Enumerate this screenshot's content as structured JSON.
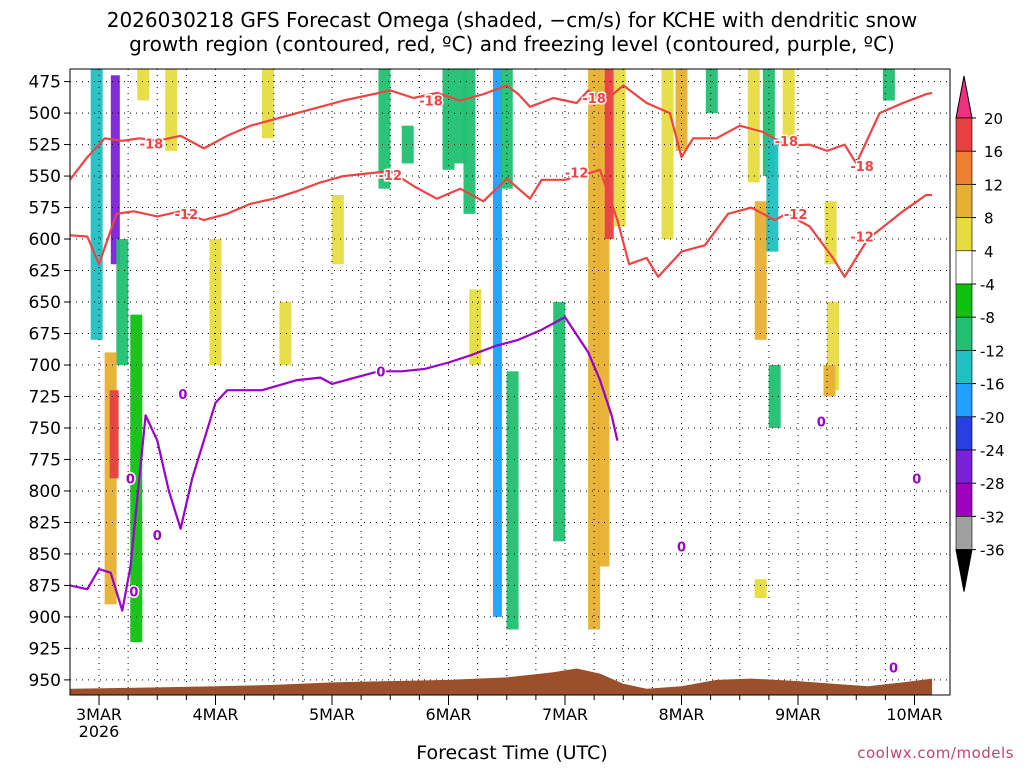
{
  "title": {
    "line1": "2026030218 GFS Forecast Omega (shaded, −cm/s) for KCHE with dendritic snow",
    "line2": "growth region (contoured, red, ºC) and freezing level (contoured, purple, ºC)"
  },
  "xlabel": "Forecast Time (UTC)",
  "credit": "coolwx.com/models",
  "colors": {
    "terrain": "#9c4f2b",
    "isotherm_red": "#ee4444",
    "freezing_purple": "#9900cc",
    "grid": "#000000"
  },
  "chart_data": {
    "type": "heatmap",
    "x_axis": {
      "ticks": [
        "3MAR",
        "4MAR",
        "5MAR",
        "6MAR",
        "7MAR",
        "8MAR",
        "9MAR",
        "10MAR"
      ],
      "sublabel": "2026",
      "range_days": [
        -0.25,
        7.15
      ]
    },
    "y_axis": {
      "label": "",
      "ticks": [
        475,
        500,
        525,
        550,
        575,
        600,
        625,
        650,
        675,
        700,
        725,
        750,
        775,
        800,
        825,
        850,
        875,
        900,
        925,
        950
      ],
      "range_mb": [
        465,
        962
      ],
      "inverted": true
    },
    "colorbar": {
      "levels": [
        "20",
        "16",
        "12",
        "8",
        "4",
        "-4",
        "-8",
        "-12",
        "-16",
        "-20",
        "-24",
        "-28",
        "-32",
        "-36"
      ],
      "colors": [
        "#f0307f",
        "#e84040",
        "#ef8030",
        "#e8b030",
        "#e6dc40",
        "#ffffff",
        "#10c010",
        "#20c070",
        "#20c0c0",
        "#1fa0ff",
        "#2840e0",
        "#7a20d8",
        "#a000c0",
        "#a0a0a0",
        "#000000"
      ]
    },
    "omega_regions": [
      {
        "day": -0.02,
        "p_top": 465,
        "p_bot": 680,
        "value": -14
      },
      {
        "day": 0.14,
        "p_top": 470,
        "p_bot": 620,
        "value": -26
      },
      {
        "day": 0.2,
        "p_top": 600,
        "p_bot": 700,
        "value": -10
      },
      {
        "day": 0.1,
        "p_top": 690,
        "p_bot": 890,
        "value": 12
      },
      {
        "day": 0.13,
        "p_top": 720,
        "p_bot": 790,
        "value": 18
      },
      {
        "day": 0.32,
        "p_top": 660,
        "p_bot": 920,
        "value": -6
      },
      {
        "day": 0.38,
        "p_top": 465,
        "p_bot": 490,
        "value": 5
      },
      {
        "day": 0.62,
        "p_top": 465,
        "p_bot": 530,
        "value": 5
      },
      {
        "day": 1.45,
        "p_top": 465,
        "p_bot": 520,
        "value": 5
      },
      {
        "day": 1.0,
        "p_top": 600,
        "p_bot": 700,
        "value": 5
      },
      {
        "day": 1.6,
        "p_top": 650,
        "p_bot": 700,
        "value": 5
      },
      {
        "day": 2.65,
        "p_top": 510,
        "p_bot": 540,
        "value": -8
      },
      {
        "day": 2.05,
        "p_top": 565,
        "p_bot": 620,
        "value": 5
      },
      {
        "day": 2.45,
        "p_top": 465,
        "p_bot": 560,
        "value": -8
      },
      {
        "day": 3.0,
        "p_top": 465,
        "p_bot": 545,
        "value": -8
      },
      {
        "day": 3.1,
        "p_top": 465,
        "p_bot": 540,
        "value": -8
      },
      {
        "day": 3.18,
        "p_top": 465,
        "p_bot": 580,
        "value": -8
      },
      {
        "day": 3.23,
        "p_top": 640,
        "p_bot": 700,
        "value": 5
      },
      {
        "day": 3.42,
        "p_top": 465,
        "p_bot": 900,
        "value": -18
      },
      {
        "day": 3.5,
        "p_top": 465,
        "p_bot": 560,
        "value": -8
      },
      {
        "day": 3.55,
        "p_top": 705,
        "p_bot": 910,
        "value": -8
      },
      {
        "day": 3.95,
        "p_top": 650,
        "p_bot": 840,
        "value": -8
      },
      {
        "day": 4.25,
        "p_top": 465,
        "p_bot": 910,
        "value": 10
      },
      {
        "day": 4.33,
        "p_top": 465,
        "p_bot": 860,
        "value": 12
      },
      {
        "day": 4.38,
        "p_top": 465,
        "p_bot": 600,
        "value": 20
      },
      {
        "day": 4.47,
        "p_top": 465,
        "p_bot": 590,
        "value": 6
      },
      {
        "day": 4.88,
        "p_top": 465,
        "p_bot": 600,
        "value": 6
      },
      {
        "day": 5.0,
        "p_top": 465,
        "p_bot": 530,
        "value": 10
      },
      {
        "day": 5.26,
        "p_top": 465,
        "p_bot": 500,
        "value": -8
      },
      {
        "day": 5.62,
        "p_top": 465,
        "p_bot": 555,
        "value": 6
      },
      {
        "day": 5.68,
        "p_top": 570,
        "p_bot": 680,
        "value": 12
      },
      {
        "day": 5.75,
        "p_top": 465,
        "p_bot": 550,
        "value": -8
      },
      {
        "day": 5.78,
        "p_top": 520,
        "p_bot": 610,
        "value": -13
      },
      {
        "day": 5.8,
        "p_top": 700,
        "p_bot": 750,
        "value": -8
      },
      {
        "day": 5.92,
        "p_top": 465,
        "p_bot": 520,
        "value": 6
      },
      {
        "day": 6.28,
        "p_top": 570,
        "p_bot": 620,
        "value": 6
      },
      {
        "day": 6.3,
        "p_top": 650,
        "p_bot": 720,
        "value": 6
      },
      {
        "day": 6.27,
        "p_top": 700,
        "p_bot": 725,
        "value": 10
      },
      {
        "day": 6.78,
        "p_top": 465,
        "p_bot": 490,
        "value": -8
      },
      {
        "day": 5.68,
        "p_top": 870,
        "p_bot": 885,
        "value": 6
      }
    ],
    "series": [
      {
        "name": "-18",
        "color": "red",
        "x": [
          -0.25,
          -0.1,
          0.05,
          0.2,
          0.35,
          0.5,
          0.7,
          0.9,
          1.1,
          1.3,
          1.5,
          1.7,
          1.9,
          2.1,
          2.3,
          2.5,
          2.7,
          2.9,
          3.1,
          3.3,
          3.5,
          3.6,
          3.7,
          3.9,
          4.1,
          4.2,
          4.35,
          4.5,
          4.7,
          4.9,
          5.0,
          5.1,
          5.3,
          5.5,
          5.7,
          5.9,
          6.1,
          6.25,
          6.4,
          6.5,
          6.7,
          6.9,
          7.1,
          7.15
        ],
        "y": [
          553,
          535,
          520,
          522,
          520,
          522,
          518,
          528,
          518,
          510,
          505,
          500,
          495,
          490,
          486,
          482,
          488,
          484,
          490,
          485,
          478,
          485,
          495,
          488,
          492,
          482,
          490,
          478,
          492,
          500,
          535,
          520,
          520,
          510,
          515,
          526,
          525,
          530,
          525,
          540,
          500,
          492,
          485,
          484
        ]
      },
      {
        "name": "-12",
        "color": "red",
        "x": [
          -0.25,
          -0.1,
          0.0,
          0.15,
          0.3,
          0.5,
          0.7,
          0.9,
          1.1,
          1.3,
          1.5,
          1.7,
          1.9,
          2.1,
          2.3,
          2.5,
          2.7,
          2.9,
          3.1,
          3.3,
          3.5,
          3.7,
          3.8,
          4.0,
          4.2,
          4.3,
          4.45,
          4.55,
          4.7,
          4.8,
          5.0,
          5.2,
          5.4,
          5.6,
          5.8,
          5.9,
          6.1,
          6.3,
          6.4,
          6.6,
          6.9,
          7.1,
          7.15
        ],
        "y": [
          597,
          598,
          620,
          580,
          578,
          582,
          578,
          585,
          580,
          572,
          568,
          562,
          555,
          550,
          548,
          546,
          558,
          568,
          560,
          570,
          552,
          568,
          553,
          553,
          548,
          545,
          585,
          620,
          615,
          630,
          610,
          605,
          580,
          575,
          585,
          580,
          590,
          615,
          630,
          600,
          578,
          565,
          565
        ]
      },
      {
        "name": "0",
        "color": "purple",
        "x": [
          -0.25,
          -0.1,
          0.0,
          0.1,
          0.2,
          0.27,
          0.4,
          0.5,
          0.6,
          0.7,
          0.8,
          0.9,
          1.0,
          1.1,
          1.4,
          1.7,
          1.9,
          2.0,
          2.2,
          2.4,
          2.6,
          2.8,
          3.0,
          3.2,
          3.4,
          3.6,
          3.8,
          4.0,
          4.2,
          4.3,
          4.4,
          4.45
        ],
        "y": [
          875,
          878,
          862,
          865,
          895,
          860,
          740,
          760,
          800,
          830,
          790,
          760,
          730,
          720,
          720,
          712,
          710,
          715,
          710,
          705,
          705,
          703,
          698,
          692,
          685,
          680,
          672,
          662,
          690,
          712,
          740,
          760
        ]
      }
    ],
    "terrain": {
      "x": [
        -0.25,
        0.5,
        1.0,
        1.5,
        2.0,
        2.5,
        3.0,
        3.5,
        3.9,
        4.1,
        4.3,
        4.5,
        4.7,
        5.0,
        5.3,
        5.6,
        6.0,
        6.3,
        6.6,
        6.9,
        7.15
      ],
      "p_mb": [
        957,
        956,
        955,
        954,
        952,
        951,
        950,
        948,
        944,
        941,
        945,
        953,
        957,
        955,
        950,
        949,
        951,
        953,
        955,
        952,
        949
      ]
    },
    "contour_labels": [
      {
        "text": "-18",
        "day": 0.45,
        "p": 524,
        "color": "red"
      },
      {
        "text": "-18",
        "day": 2.85,
        "p": 490,
        "color": "red"
      },
      {
        "text": "-18",
        "day": 4.25,
        "p": 488,
        "color": "red"
      },
      {
        "text": "-18",
        "day": 5.9,
        "p": 522,
        "color": "red"
      },
      {
        "text": "-18",
        "day": 6.55,
        "p": 542,
        "color": "red"
      },
      {
        "text": "-12",
        "day": 0.75,
        "p": 580,
        "color": "red"
      },
      {
        "text": "-12",
        "day": 2.5,
        "p": 549,
        "color": "red"
      },
      {
        "text": "-12",
        "day": 4.1,
        "p": 547,
        "color": "red"
      },
      {
        "text": "-12",
        "day": 5.98,
        "p": 580,
        "color": "red"
      },
      {
        "text": "-12",
        "day": 6.55,
        "p": 598,
        "color": "red"
      },
      {
        "text": "0",
        "day": 0.72,
        "p": 723,
        "color": "purple"
      },
      {
        "text": "0",
        "day": 0.27,
        "p": 790,
        "color": "purple"
      },
      {
        "text": "0",
        "day": 0.5,
        "p": 835,
        "color": "purple"
      },
      {
        "text": "0",
        "day": 0.3,
        "p": 880,
        "color": "purple"
      },
      {
        "text": "0",
        "day": 2.42,
        "p": 705,
        "color": "purple"
      },
      {
        "text": "0",
        "day": 5.0,
        "p": 844,
        "color": "purple"
      },
      {
        "text": "0",
        "day": 6.2,
        "p": 745,
        "color": "purple"
      },
      {
        "text": "0",
        "day": 7.02,
        "p": 790,
        "color": "purple"
      },
      {
        "text": "0",
        "day": 6.82,
        "p": 940,
        "color": "purple"
      }
    ]
  }
}
